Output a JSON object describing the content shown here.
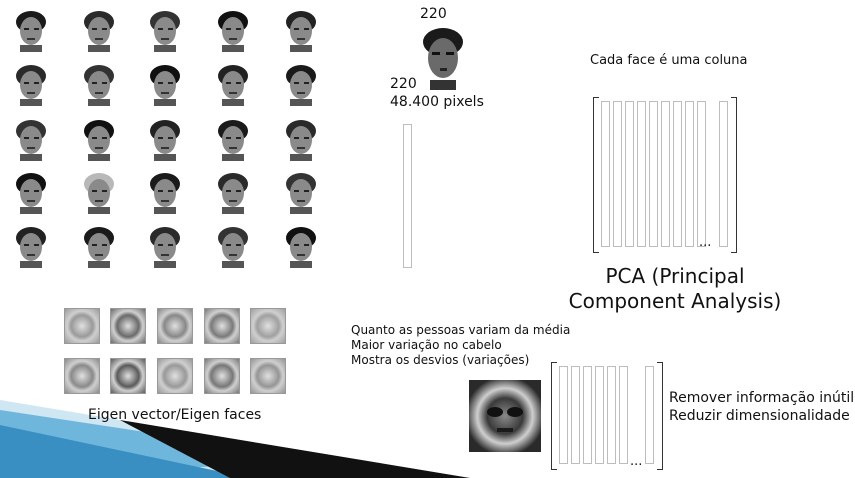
{
  "image_size": {
    "width_label": "220",
    "height_label": "220",
    "pixels_label": "48.400 pixels"
  },
  "column_caption": "Cada face é uma coluna",
  "ellipsis": "...",
  "pca_title_line1": "PCA (Principal",
  "pca_title_line2": "Component Analysis)",
  "eigen_caption": "Eigen vector/Eigen faces",
  "notes": [
    "Quanto as pessoas variam da média",
    "Maior variação no cabelo",
    "Mostra os desvios (variações)"
  ],
  "goals": [
    "Remover informação inútil",
    "Reduzir dimensionalidade"
  ]
}
